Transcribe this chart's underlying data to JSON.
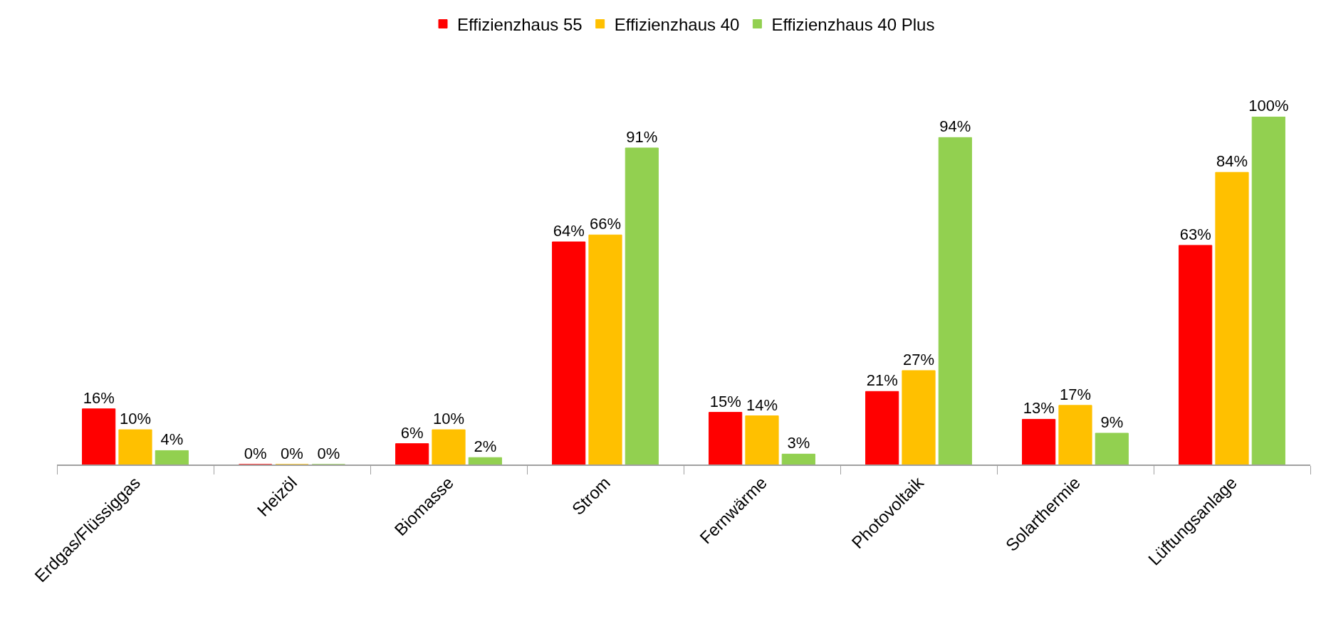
{
  "chart_data": {
    "type": "bar",
    "categories": [
      "Erdgas/Flüssiggas",
      "Heizöl",
      "Biomasse",
      "Strom",
      "Fernwärme",
      "Photovoltaik",
      "Solarthermie",
      "Lüftungsanlage"
    ],
    "series": [
      {
        "name": "Effizienzhaus 55",
        "color": "#ff0000",
        "values": [
          16,
          0,
          6,
          64,
          15,
          21,
          13,
          63
        ],
        "value_labels": [
          "16%",
          "0%",
          "6%",
          "64%",
          "15%",
          "21%",
          "13%",
          "63%"
        ]
      },
      {
        "name": "Effizienzhaus 40",
        "color": "#ffc000",
        "values": [
          10,
          0,
          10,
          66,
          14,
          27,
          17,
          84
        ],
        "value_labels": [
          "10%",
          "0%",
          "10%",
          "66%",
          "14%",
          "27%",
          "17%",
          "84%"
        ]
      },
      {
        "name": "Effizienzhaus 40 Plus",
        "color": "#92d050",
        "values": [
          4,
          0,
          2,
          91,
          3,
          94,
          9,
          100
        ],
        "value_labels": [
          "4%",
          "0%",
          "2%",
          "91%",
          "3%",
          "94%",
          "9%",
          "100%"
        ]
      }
    ],
    "legend": "top",
    "tick_labels": "x"
  }
}
